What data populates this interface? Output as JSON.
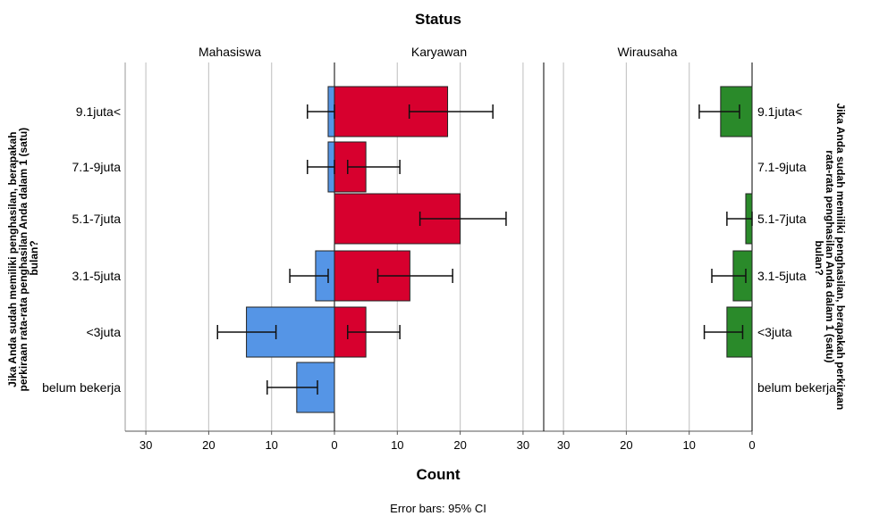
{
  "chart_data": {
    "type": "bar",
    "title": "Status",
    "xlabel": "Count",
    "ylabel_left": "Jika Anda sudah memiliki penghasilan, berapakah perkiraan rata-rata penghasilan Anda dalam 1 (satu) bulan?",
    "ylabel_right": "Jika Anda sudah memiliki penghasilan, berapakah perkiraan rata-rata penghasilan Anda dalam 1 (satu) bulan?",
    "footnote": "Error bars: 95% CI",
    "categories": [
      "9.1juta<",
      "7.1-9juta",
      "5.1-7juta",
      "3.1-5juta",
      "<3juta",
      "belum bekerja"
    ],
    "xlim": [
      0,
      33
    ],
    "xticks": [
      30,
      20,
      10,
      0
    ],
    "karyawan_xticks": [
      0,
      10,
      20,
      30
    ],
    "grid": true,
    "series": [
      {
        "name": "Mahasiswa",
        "color": "#5595E6",
        "direction": "left",
        "values": [
          1,
          1,
          0,
          3,
          14,
          6
        ],
        "ci_low": [
          0,
          0,
          null,
          1,
          9.3,
          2.7
        ],
        "ci_high": [
          4.3,
          4.3,
          null,
          7.1,
          18.6,
          10.7
        ]
      },
      {
        "name": "Karyawan",
        "color": "#D7002E",
        "direction": "right",
        "values": [
          18,
          5,
          20,
          12,
          5,
          0
        ],
        "ci_low": [
          11.9,
          2.1,
          13.6,
          6.9,
          2.1,
          null
        ],
        "ci_high": [
          25.2,
          10.4,
          27.3,
          18.8,
          10.4,
          null
        ]
      },
      {
        "name": "Wirausaha",
        "color": "#2A8A2A",
        "direction": "left",
        "values": [
          5,
          0,
          1,
          3,
          4,
          0
        ],
        "ci_low": [
          2,
          null,
          0,
          1,
          1.5,
          null
        ],
        "ci_high": [
          8.4,
          null,
          4,
          6.4,
          7.6,
          null
        ]
      }
    ]
  }
}
